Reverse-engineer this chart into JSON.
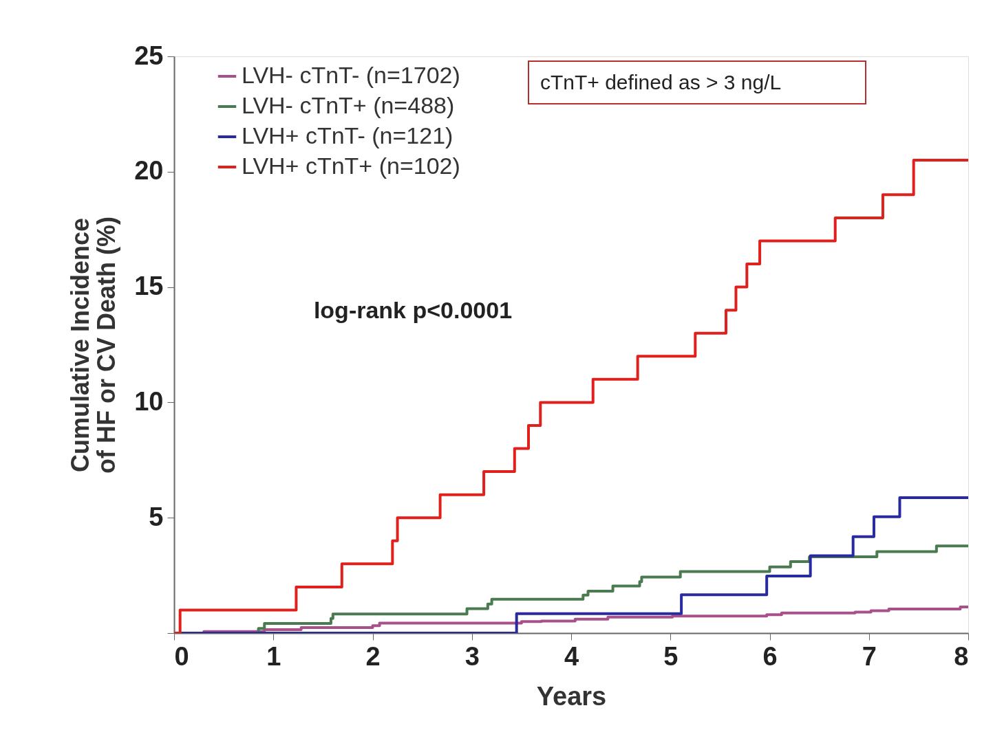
{
  "chart_data": {
    "type": "step",
    "xlabel": "Years",
    "ylabel": "Cumulative Incidence\nof HF or CV Death (%)",
    "xlim": [
      0,
      8
    ],
    "xticks": [
      0,
      1,
      2,
      3,
      4,
      5,
      6,
      7,
      8
    ],
    "ylim": [
      0,
      25
    ],
    "yticks": [
      {
        "value": 0,
        "label": null
      },
      5,
      10,
      15,
      20,
      25
    ],
    "legend": "top left",
    "grid": false,
    "line_style": "solid",
    "annotations": [
      "log-rank p<0.0001",
      "cTnT+ defined as > 3 ng/L"
    ],
    "series": [
      {
        "name": "LVH- cTnT- (n=1702)",
        "color": "#a8508a",
        "x": [
          0,
          0.3,
          0.91,
          1.28,
          2.0,
          2.07,
          3.5,
          3.7,
          4.04,
          4.37,
          5.02,
          5.97,
          6.12,
          6.86,
          7.02,
          7.2,
          7.92,
          8
        ],
        "values": [
          0,
          0.07,
          0.15,
          0.24,
          0.32,
          0.43,
          0.5,
          0.52,
          0.6,
          0.69,
          0.74,
          0.8,
          0.87,
          0.91,
          0.97,
          1.04,
          1.13,
          1.13
        ]
      },
      {
        "name": "LVH- cTnT+ (n=488)",
        "color": "#4a7a4f",
        "x": [
          0,
          0.85,
          0.91,
          1.58,
          1.6,
          2.95,
          3.16,
          3.2,
          4.12,
          4.17,
          4.42,
          4.69,
          4.71,
          5.1,
          6.0,
          6.21,
          6.4,
          7.08,
          7.68,
          8
        ],
        "values": [
          0,
          0.2,
          0.42,
          0.63,
          0.83,
          1.06,
          1.26,
          1.47,
          1.65,
          1.82,
          2.04,
          2.23,
          2.43,
          2.67,
          2.87,
          3.1,
          3.31,
          3.53,
          3.78,
          3.78
        ]
      },
      {
        "name": "LVH+ cTnT- (n=121)",
        "color": "#2a2aa0",
        "x": [
          0,
          3.45,
          5.11,
          5.97,
          6.41,
          6.84,
          7.05,
          7.31,
          8
        ],
        "values": [
          0,
          0.84,
          1.66,
          2.47,
          3.35,
          4.18,
          5.04,
          5.87,
          5.87
        ]
      },
      {
        "name": "LVH+ cTnT+ (n=102)",
        "color": "#e0201c",
        "x": [
          0,
          0.06,
          1.23,
          1.69,
          2.2,
          2.25,
          2.68,
          3.12,
          3.43,
          3.57,
          3.69,
          4.22,
          4.67,
          5.25,
          5.56,
          5.66,
          5.77,
          5.9,
          6.66,
          7.14,
          7.45,
          8
        ],
        "values": [
          0,
          1.0,
          2.0,
          3.0,
          4.0,
          5.0,
          6.0,
          7.0,
          8.0,
          9.0,
          10.0,
          11.0,
          12.0,
          13.0,
          14.0,
          15.0,
          16.0,
          17.0,
          18.0,
          19.0,
          20.5,
          20.5
        ]
      }
    ]
  }
}
